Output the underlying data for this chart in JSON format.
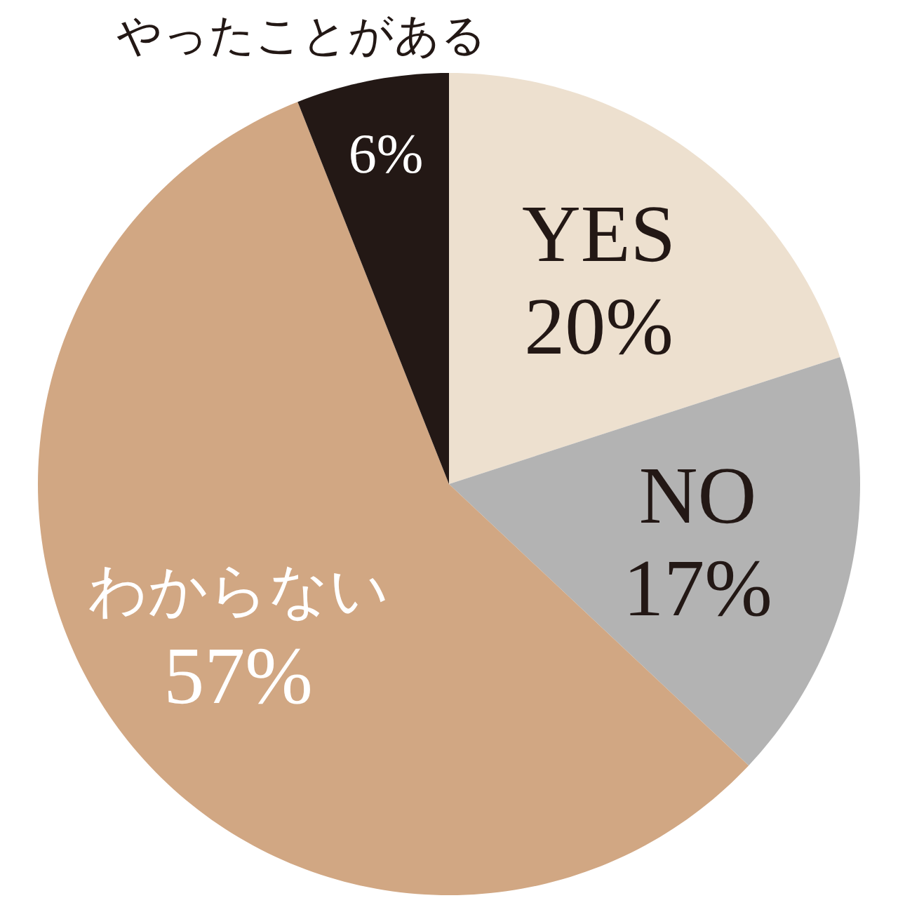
{
  "chart_data": {
    "type": "pie",
    "categories": [
      "YES",
      "NO",
      "わからない",
      "やったことがある"
    ],
    "values": [
      20,
      17,
      57,
      6
    ],
    "colors": [
      "#ede0cf",
      "#b3b3b3",
      "#d1a783",
      "#231815"
    ],
    "value_labels": [
      "20%",
      "17%",
      "57%",
      "6%"
    ]
  }
}
